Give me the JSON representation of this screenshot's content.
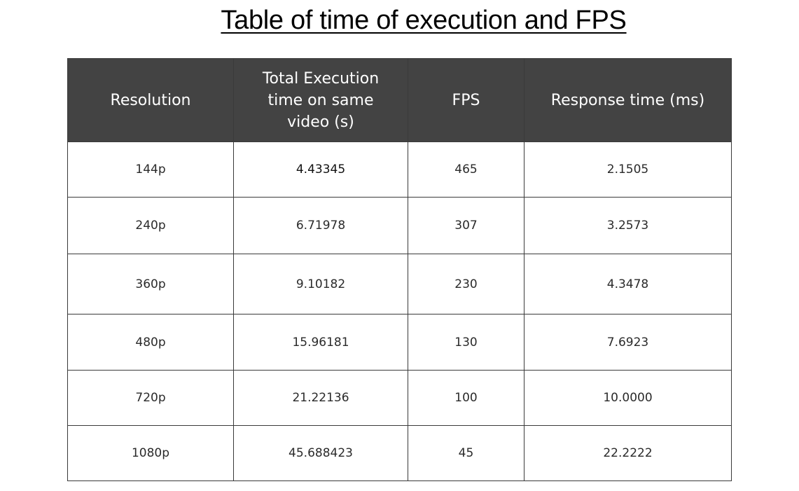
{
  "title": "Table of time of execution and FPS",
  "table": {
    "headers": [
      "Resolution",
      "Total Execution time on same video (s)",
      "FPS",
      "Response time (ms)"
    ],
    "rows": [
      [
        "144p",
        "4.43345",
        "465",
        "2.1505"
      ],
      [
        "240p",
        "6.71978",
        "307",
        "3.2573"
      ],
      [
        "360p",
        "9.10182",
        "230",
        "4.3478"
      ],
      [
        "480p",
        "15.96181",
        "130",
        "7.6923"
      ],
      [
        "720p",
        "21.22136",
        "100",
        "10.0000"
      ],
      [
        "1080p",
        "45.688423",
        "45",
        "22.2222"
      ]
    ]
  },
  "colors": {
    "header_background": "#434343",
    "header_text": "#ffffff",
    "border": "#3a3a3a"
  }
}
